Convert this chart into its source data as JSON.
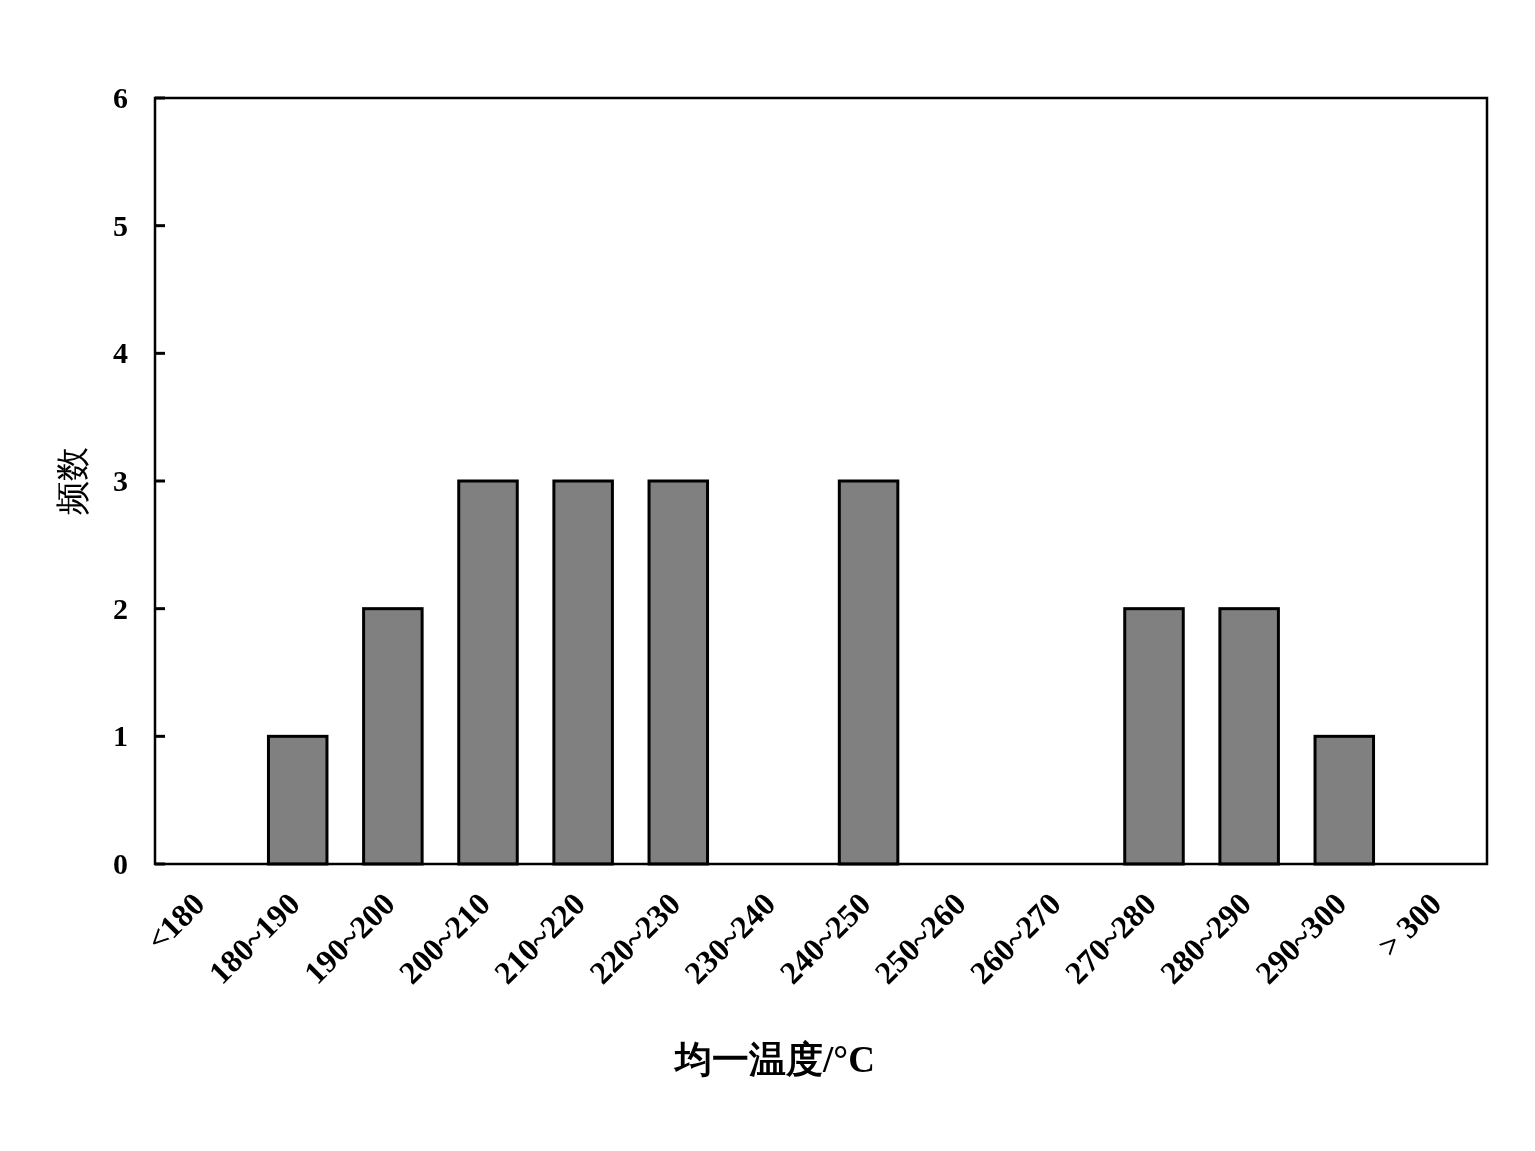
{
  "chart_data": {
    "type": "bar",
    "xlabel": "均一温度/°C",
    "ylabel": "频数",
    "categories": [
      "<180",
      "180~190",
      "190~200",
      "200~210",
      "210~220",
      "220~230",
      "230~240",
      "240~250",
      "250~260",
      "260~270",
      "270~280",
      "280~290",
      "290~300",
      "> 300"
    ],
    "values": [
      0,
      1,
      2,
      3,
      3,
      3,
      0,
      3,
      0,
      0,
      2,
      2,
      1,
      0
    ],
    "color": "#808080",
    "ylim": [
      0,
      6
    ],
    "yticks": [
      0,
      1,
      2,
      3,
      4,
      5,
      6
    ]
  }
}
